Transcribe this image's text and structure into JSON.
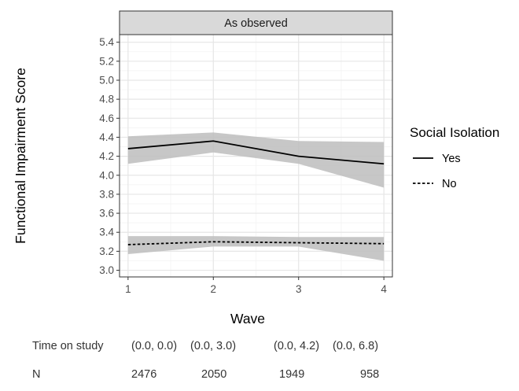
{
  "chart_data": {
    "type": "line",
    "facet_title": "As observed",
    "xlabel": "Wave",
    "ylabel": "Functional Impairment Score",
    "x": [
      1,
      2,
      3,
      4
    ],
    "x_tick_labels": [
      "1",
      "2",
      "3",
      "4"
    ],
    "y_ticks": [
      3.0,
      3.2,
      3.4,
      3.6,
      3.8,
      4.0,
      4.2,
      4.4,
      4.6,
      4.8,
      5.0,
      5.2,
      5.4
    ],
    "y_tick_labels": [
      "3.0",
      "3.2",
      "3.4",
      "3.6",
      "3.8",
      "4.0",
      "4.2",
      "4.4",
      "4.6",
      "4.8",
      "5.0",
      "5.2",
      "5.4"
    ],
    "xlim": [
      0.9,
      4.1
    ],
    "ylim": [
      2.93,
      5.48
    ],
    "grid": true,
    "legend": {
      "title": "Social Isolation",
      "position": "right"
    },
    "series": [
      {
        "name": "Yes",
        "linestyle": "solid",
        "values": [
          4.28,
          4.36,
          4.2,
          4.12
        ],
        "lower": [
          4.12,
          4.24,
          4.12,
          3.87
        ],
        "upper": [
          4.41,
          4.45,
          4.36,
          4.35
        ]
      },
      {
        "name": "No",
        "linestyle": "dashed",
        "values": [
          3.27,
          3.3,
          3.29,
          3.28
        ],
        "lower": [
          3.17,
          3.25,
          3.25,
          3.1
        ],
        "upper": [
          3.36,
          3.36,
          3.35,
          3.35
        ]
      }
    ],
    "colors": {
      "line": "#000000",
      "ribbon": "#bdbdbd",
      "strip": "#d9d9d9",
      "grid_major": "#e6e6e6",
      "grid_minor": "#f2f2f2"
    }
  },
  "table": {
    "time_label": "Time on study",
    "time_values": [
      "(0.0, 0.0)",
      "(0.0, 3.0)",
      "(0.0, 4.2)",
      "(0.0, 6.8)"
    ],
    "n_label": "N",
    "n_values": [
      "2476",
      "2050",
      "1949",
      "958"
    ]
  }
}
